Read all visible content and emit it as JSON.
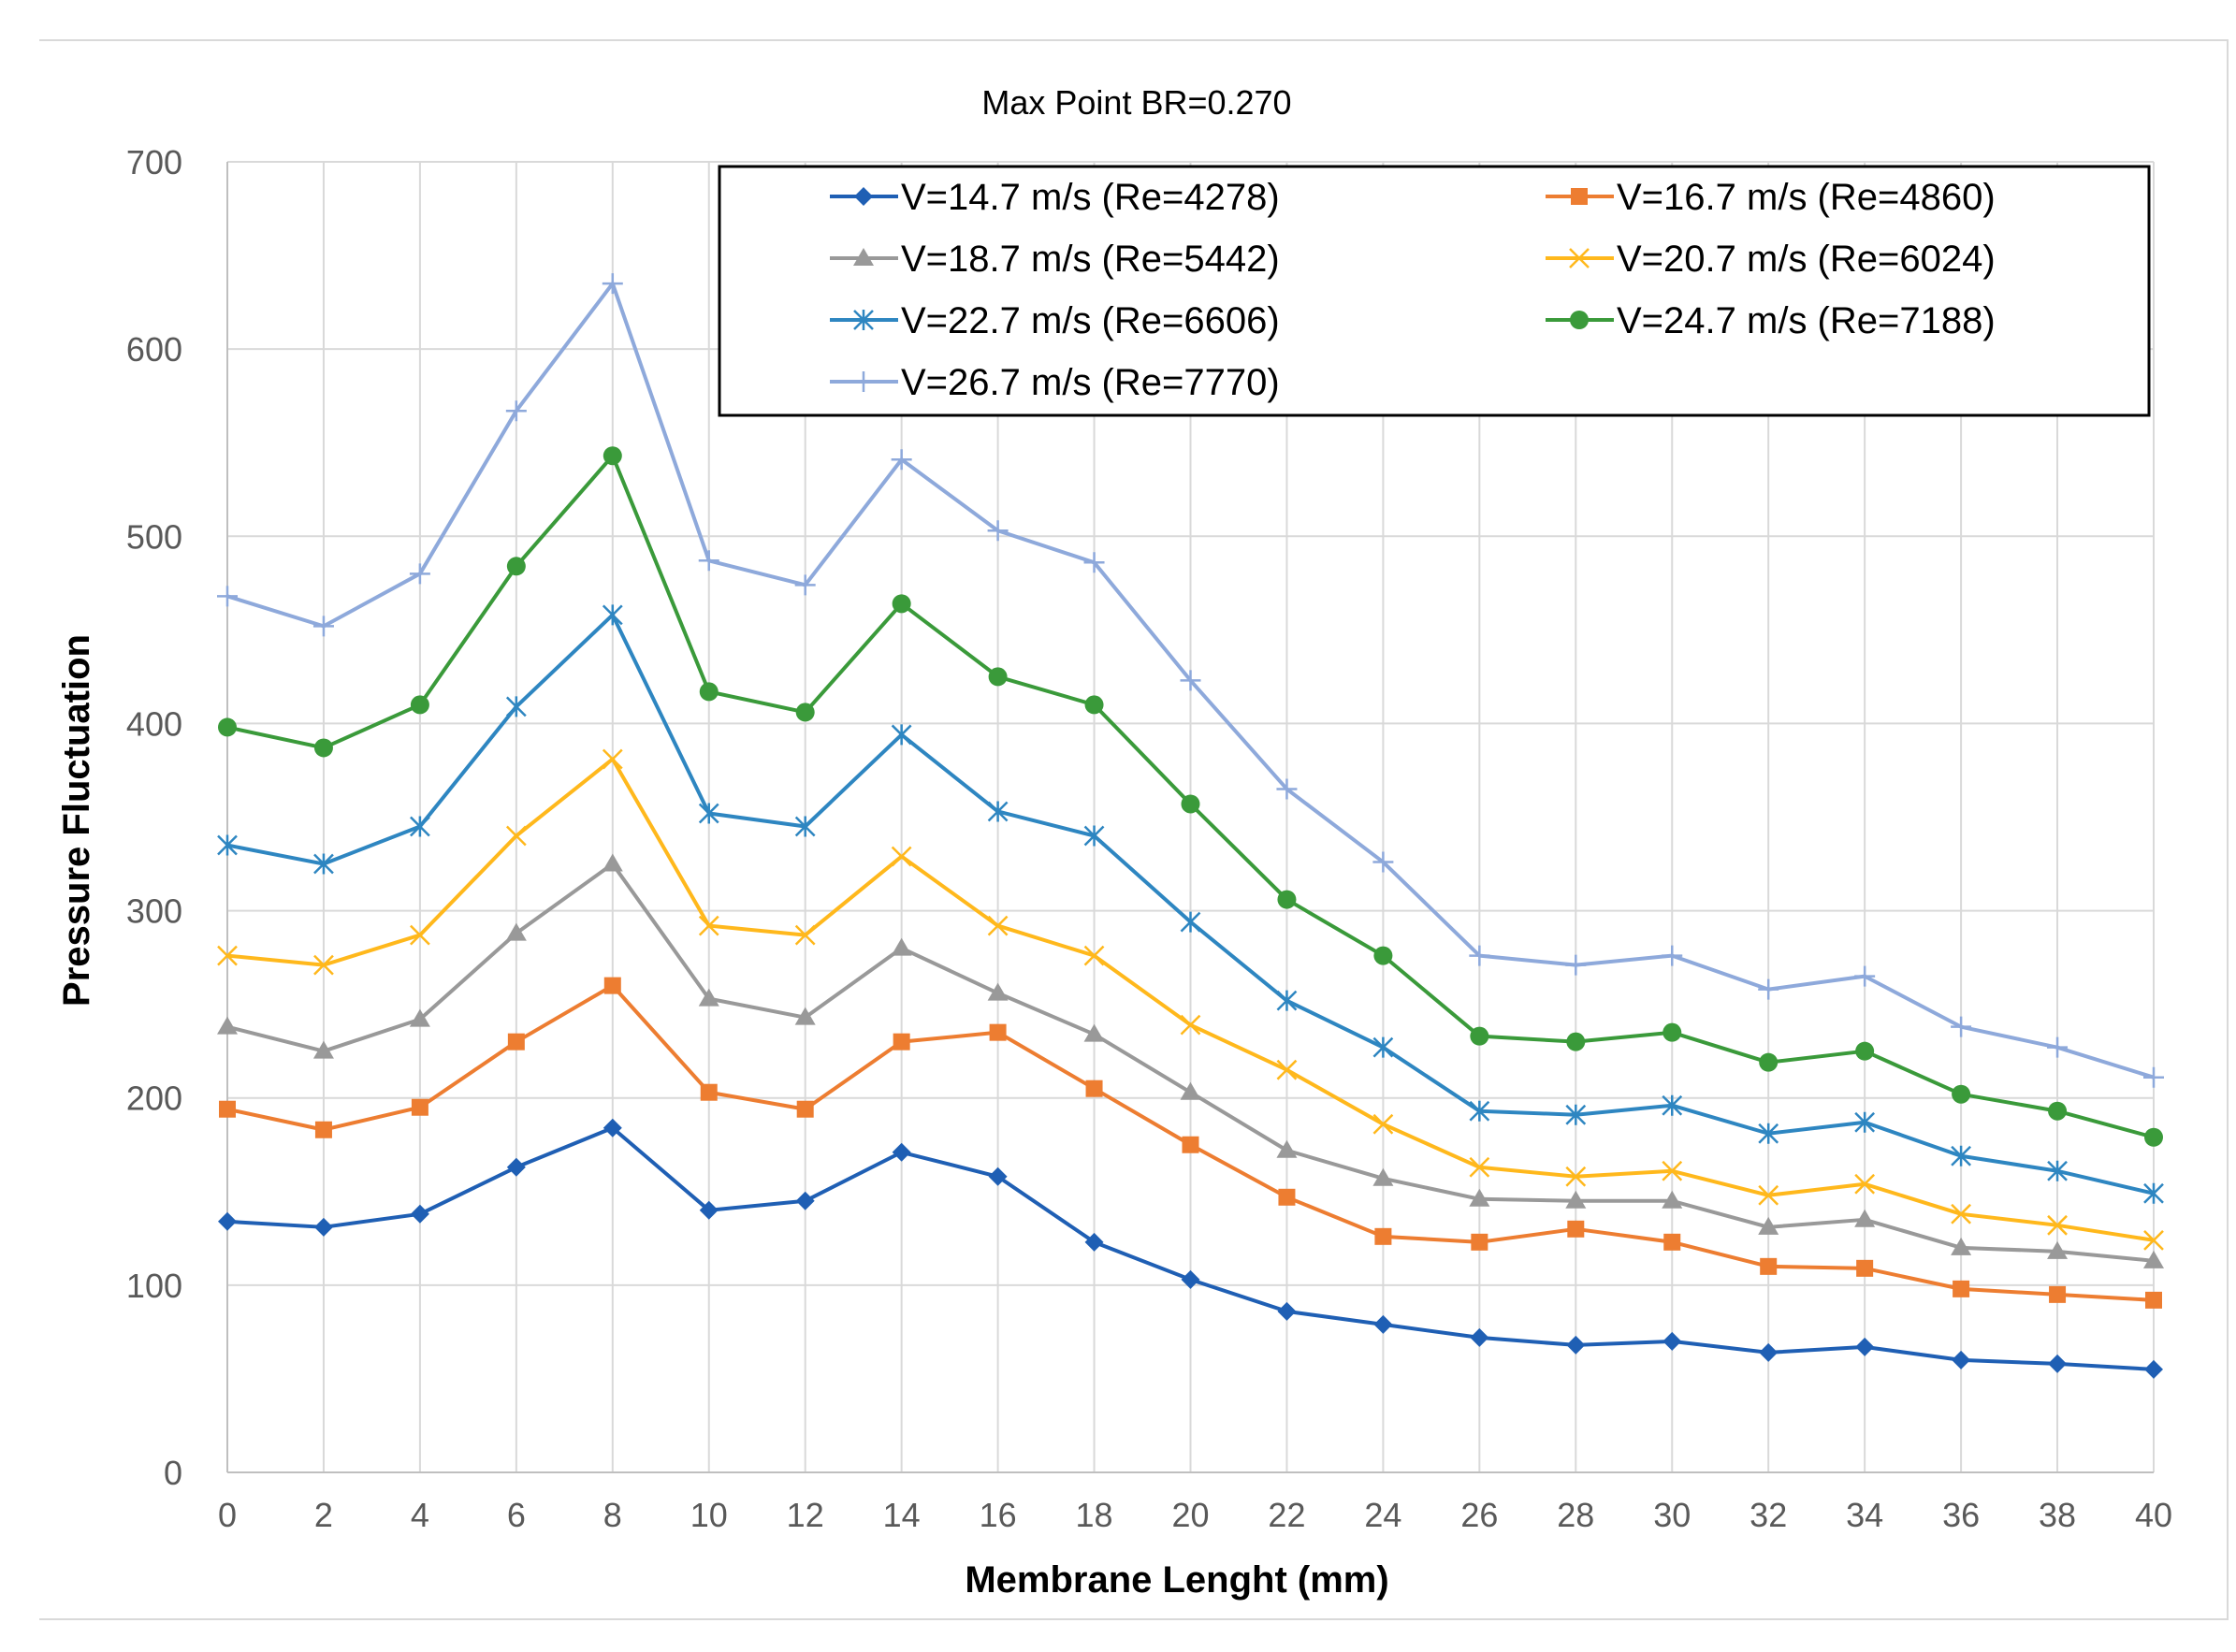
{
  "chart_data": {
    "type": "line",
    "title": "Max Point BR=0.270",
    "xlabel": "Membrane Lenght (mm)",
    "ylabel": "Pressure Fluctuation",
    "xlim": [
      0,
      40
    ],
    "ylim": [
      0,
      700
    ],
    "x_ticks": [
      0,
      2,
      4,
      6,
      8,
      10,
      12,
      14,
      16,
      18,
      20,
      22,
      24,
      26,
      28,
      30,
      32,
      34,
      36,
      38,
      40
    ],
    "y_ticks": [
      0,
      100,
      200,
      300,
      400,
      500,
      600,
      700
    ],
    "grid": true,
    "legend_position": "top-right",
    "x": [
      0,
      2,
      4,
      6,
      8,
      10,
      12,
      14,
      16,
      18,
      20,
      22,
      24,
      26,
      28,
      30,
      32,
      34,
      36,
      38,
      40
    ],
    "series": [
      {
        "name": "V=14.7 m/s (Re=4278)",
        "color": "#1f5fb4",
        "marker": "diamond",
        "values": [
          134,
          131,
          138,
          163,
          184,
          140,
          145,
          171,
          158,
          123,
          103,
          86,
          79,
          72,
          68,
          70,
          64,
          67,
          60,
          58,
          55
        ]
      },
      {
        "name": "V=16.7 m/s (Re=4860)",
        "color": "#ed7d31",
        "marker": "square",
        "values": [
          194,
          183,
          195,
          230,
          260,
          203,
          194,
          230,
          235,
          205,
          175,
          147,
          126,
          123,
          130,
          123,
          110,
          109,
          98,
          95,
          92
        ]
      },
      {
        "name": "V=18.7 m/s (Re=5442)",
        "color": "#999999",
        "marker": "triangle",
        "values": [
          238,
          225,
          242,
          288,
          325,
          253,
          243,
          280,
          256,
          234,
          203,
          172,
          157,
          146,
          145,
          145,
          131,
          135,
          120,
          118,
          113
        ]
      },
      {
        "name": "V=20.7 m/s (Re=6024)",
        "color": "#ffb81c",
        "marker": "x",
        "values": [
          276,
          271,
          287,
          340,
          381,
          292,
          287,
          329,
          292,
          276,
          239,
          215,
          186,
          163,
          158,
          161,
          148,
          154,
          138,
          132,
          124
        ]
      },
      {
        "name": "V=22.7 m/s (Re=6606)",
        "color": "#2e86c1",
        "marker": "star",
        "values": [
          335,
          325,
          345,
          409,
          458,
          352,
          345,
          394,
          353,
          340,
          294,
          252,
          227,
          193,
          191,
          196,
          181,
          187,
          169,
          161,
          149
        ]
      },
      {
        "name": "V=24.7 m/s (Re=7188)",
        "color": "#3a9a3a",
        "marker": "circle",
        "values": [
          398,
          387,
          410,
          484,
          543,
          417,
          406,
          464,
          425,
          410,
          357,
          306,
          276,
          233,
          230,
          235,
          219,
          225,
          202,
          193,
          179
        ]
      },
      {
        "name": "V=26.7 m/s (Re=7770)",
        "color": "#8ea9db",
        "marker": "plus",
        "values": [
          468,
          452,
          480,
          567,
          635,
          487,
          474,
          541,
          503,
          486,
          423,
          365,
          326,
          276,
          271,
          276,
          258,
          265,
          238,
          227,
          211
        ]
      }
    ]
  }
}
